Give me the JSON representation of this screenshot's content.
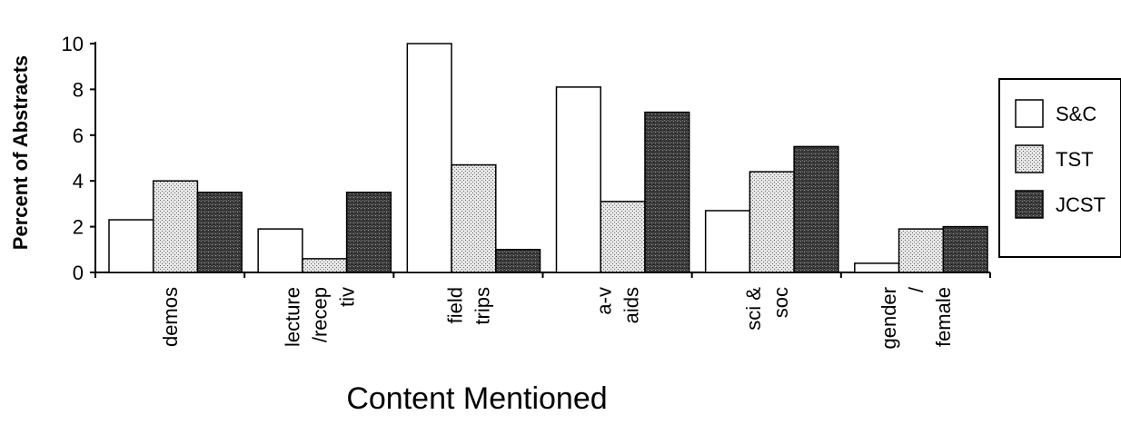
{
  "chart_data": {
    "type": "bar",
    "title": "",
    "xlabel": "Content Mentioned",
    "ylabel": "Percent of Abstracts",
    "ylim": [
      0,
      10
    ],
    "yticks": [
      0,
      2,
      4,
      6,
      8,
      10
    ],
    "grid": false,
    "legend_position": "right",
    "categories": [
      [
        "demos"
      ],
      [
        "lecture",
        "/recep",
        "tiv"
      ],
      [
        "field",
        "trips"
      ],
      [
        "a-v",
        "aids"
      ],
      [
        "sci &",
        "soc"
      ],
      [
        "gender",
        "/",
        "female"
      ]
    ],
    "series": [
      {
        "name": "S&C",
        "values": [
          2.3,
          1.9,
          10.0,
          8.1,
          2.7,
          0.4
        ],
        "fill": "white"
      },
      {
        "name": "TST",
        "values": [
          4.0,
          0.6,
          4.7,
          3.1,
          4.4,
          1.9
        ],
        "fill": "light-dots"
      },
      {
        "name": "JCST",
        "values": [
          3.5,
          3.5,
          1.0,
          7.0,
          5.5,
          2.0
        ],
        "fill": "dark-dots"
      }
    ]
  },
  "colors": {
    "ink": "#000000",
    "light_fill": "#cfcfcf",
    "dark_fill": "#2a2a2a"
  }
}
